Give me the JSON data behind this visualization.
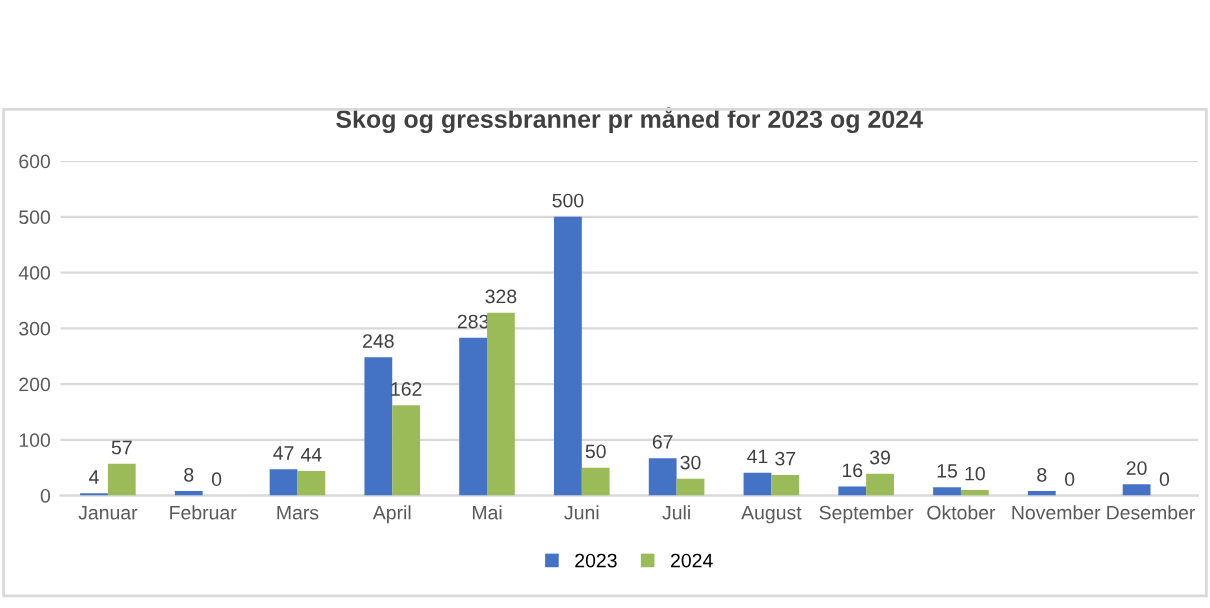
{
  "chart_data": {
    "type": "bar",
    "title": "Skog og gressbranner pr måned for 2023 og 2024",
    "categories": [
      "Januar",
      "Februar",
      "Mars",
      "April",
      "Mai",
      "Juni",
      "Juli",
      "August",
      "September",
      "Oktober",
      "November",
      "Desember"
    ],
    "series": [
      {
        "name": "2023",
        "color": "#4472c4",
        "values": [
          4,
          8,
          47,
          248,
          283,
          500,
          67,
          41,
          16,
          15,
          8,
          20
        ]
      },
      {
        "name": "2024",
        "color": "#9bbb59",
        "values": [
          57,
          0,
          44,
          162,
          328,
          50,
          30,
          37,
          39,
          10,
          0,
          0
        ]
      }
    ],
    "ylim": [
      0,
      600
    ],
    "yticks": [
      0,
      100,
      200,
      300,
      400,
      500,
      600
    ],
    "grid": "y",
    "legend": "bottom",
    "data_labels": true
  }
}
